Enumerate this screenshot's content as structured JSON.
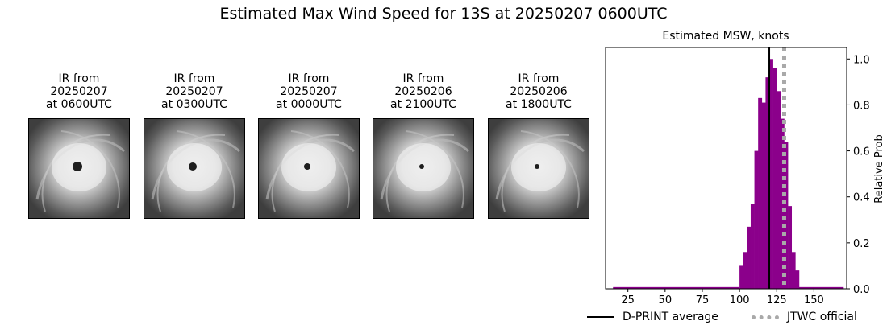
{
  "title": "Estimated Max Wind Speed for 13S at 20250207 0600UTC",
  "panels": [
    {
      "line1": "IR from",
      "line2": "20250207",
      "line3": "at 0600UTC",
      "eye_size": 6
    },
    {
      "line1": "IR from",
      "line2": "20250207",
      "line3": "at 0300UTC",
      "eye_size": 5
    },
    {
      "line1": "IR from",
      "line2": "20250207",
      "line3": "at 0000UTC",
      "eye_size": 4
    },
    {
      "line1": "IR from",
      "line2": "20250206",
      "line3": "at 2100UTC",
      "eye_size": 3
    },
    {
      "line1": "IR from",
      "line2": "20250206",
      "line3": "at 1800UTC",
      "eye_size": 3
    }
  ],
  "chart_data": {
    "type": "bar",
    "title": "Estimated MSW, knots",
    "xlabel": "",
    "ylabel": "Relative Prob",
    "xlim": [
      10,
      172
    ],
    "ylim": [
      0,
      1.05
    ],
    "xticks": [
      25,
      50,
      75,
      100,
      125,
      150
    ],
    "yticks": [
      0.0,
      0.2,
      0.4,
      0.6,
      0.8,
      1.0
    ],
    "bar_color": "#8b008b",
    "bin_width": 2.5,
    "bins": [
      {
        "x": 100,
        "y": 0.1
      },
      {
        "x": 102.5,
        "y": 0.16
      },
      {
        "x": 105,
        "y": 0.27
      },
      {
        "x": 107.5,
        "y": 0.37
      },
      {
        "x": 110,
        "y": 0.6
      },
      {
        "x": 112.5,
        "y": 0.83
      },
      {
        "x": 115,
        "y": 0.81
      },
      {
        "x": 117.5,
        "y": 0.92
      },
      {
        "x": 120,
        "y": 1.0
      },
      {
        "x": 122.5,
        "y": 0.96
      },
      {
        "x": 125,
        "y": 0.86
      },
      {
        "x": 127.5,
        "y": 0.74
      },
      {
        "x": 130,
        "y": 0.64
      },
      {
        "x": 132.5,
        "y": 0.36
      },
      {
        "x": 135,
        "y": 0.16
      },
      {
        "x": 137.5,
        "y": 0.08
      }
    ],
    "tail_level": 0.004,
    "tail_ranges": [
      [
        15,
        100
      ],
      [
        140,
        170
      ]
    ],
    "dprint_average": 120,
    "jtwc_official": 130,
    "legend": [
      {
        "label": "D-PRINT average",
        "style": "solid",
        "color": "#000000"
      },
      {
        "label": "JTWC official",
        "style": "dotted",
        "color": "#a9a9a9"
      }
    ]
  }
}
